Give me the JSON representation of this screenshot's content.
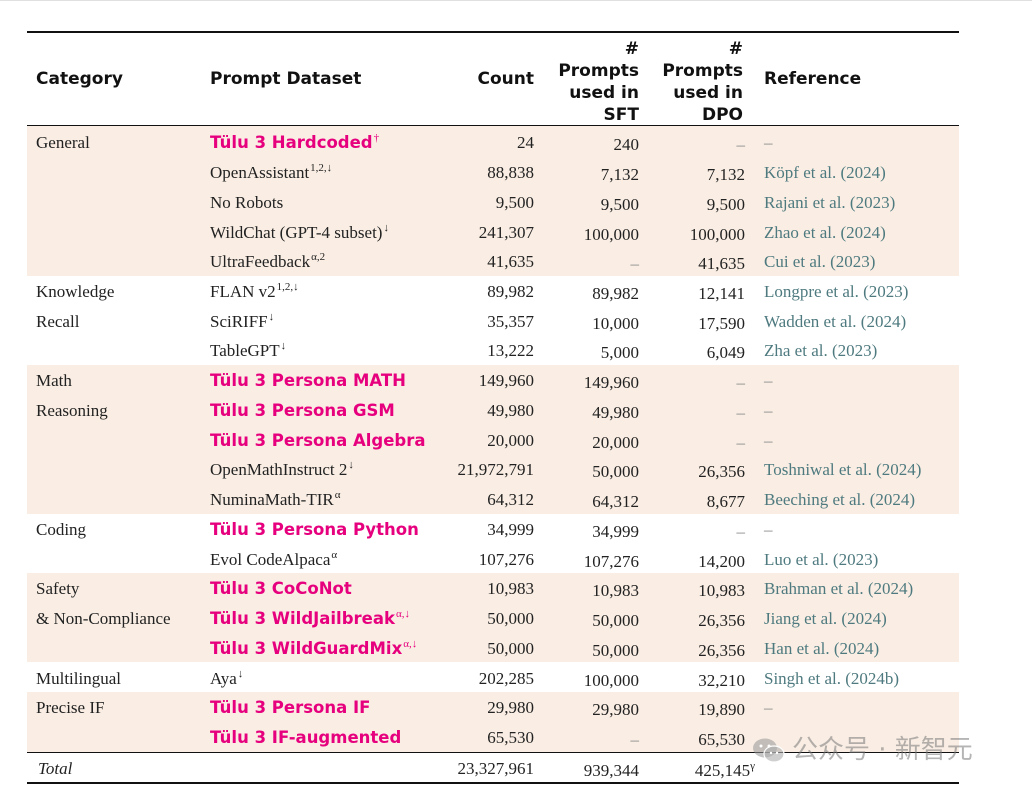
{
  "headers": {
    "category": "Category",
    "prompt_dataset": "Prompt Dataset",
    "count": "Count",
    "sft": [
      "#",
      "Prompts",
      "used in",
      "SFT"
    ],
    "dpo": [
      "#",
      "Prompts",
      "used in",
      "DPO"
    ],
    "reference": "Reference"
  },
  "rows": [
    {
      "category": "General",
      "dataset": "Tülu 3 Hardcoded",
      "sup": "†",
      "highlight": true,
      "count": "24",
      "sft": "240",
      "dpo": "–",
      "ref": "–"
    },
    {
      "category": "",
      "dataset": "OpenAssistant",
      "sup": "1,2,↓",
      "highlight": false,
      "count": "88,838",
      "sft": "7,132",
      "dpo": "7,132",
      "ref": "Köpf et al. (2024)"
    },
    {
      "category": "",
      "dataset": "No Robots",
      "sup": "",
      "highlight": false,
      "count": "9,500",
      "sft": "9,500",
      "dpo": "9,500",
      "ref": "Rajani et al. (2023)"
    },
    {
      "category": "",
      "dataset": "WildChat (GPT-4 subset)",
      "sup": "↓",
      "highlight": false,
      "count": "241,307",
      "sft": "100,000",
      "dpo": "100,000",
      "ref": "Zhao et al. (2024)"
    },
    {
      "category": "",
      "dataset": "UltraFeedback",
      "sup": "α,2",
      "highlight": false,
      "count": "41,635",
      "sft": "–",
      "dpo": "41,635",
      "ref": "Cui et al. (2023)"
    },
    {
      "category": "Knowledge",
      "dataset": "FLAN v2",
      "sup": "1,2,↓",
      "highlight": false,
      "count": "89,982",
      "sft": "89,982",
      "dpo": "12,141",
      "ref": "Longpre et al. (2023)"
    },
    {
      "category": "Recall",
      "dataset": "SciRIFF",
      "sup": "↓",
      "highlight": false,
      "count": "35,357",
      "sft": "10,000",
      "dpo": "17,590",
      "ref": "Wadden et al. (2024)"
    },
    {
      "category": "",
      "dataset": "TableGPT",
      "sup": "↓",
      "highlight": false,
      "count": "13,222",
      "sft": "5,000",
      "dpo": "6,049",
      "ref": "Zha et al. (2023)"
    },
    {
      "category": "Math",
      "dataset": "Tülu 3 Persona MATH",
      "sup": "",
      "highlight": true,
      "count": "149,960",
      "sft": "149,960",
      "dpo": "–",
      "ref": "–"
    },
    {
      "category": "Reasoning",
      "dataset": "Tülu 3 Persona GSM",
      "sup": "",
      "highlight": true,
      "count": "49,980",
      "sft": "49,980",
      "dpo": "–",
      "ref": "–"
    },
    {
      "category": "",
      "dataset": "Tülu 3 Persona Algebra",
      "sup": "",
      "highlight": true,
      "count": "20,000",
      "sft": "20,000",
      "dpo": "–",
      "ref": "–"
    },
    {
      "category": "",
      "dataset": "OpenMathInstruct 2",
      "sup": "↓",
      "highlight": false,
      "count": "21,972,791",
      "sft": "50,000",
      "dpo": "26,356",
      "ref": "Toshniwal et al. (2024)"
    },
    {
      "category": "",
      "dataset": "NuminaMath-TIR",
      "sup": "α",
      "highlight": false,
      "count": "64,312",
      "sft": "64,312",
      "dpo": "8,677",
      "ref": "Beeching et al. (2024)"
    },
    {
      "category": "Coding",
      "dataset": "Tülu 3 Persona Python",
      "sup": "",
      "highlight": true,
      "count": "34,999",
      "sft": "34,999",
      "dpo": "–",
      "ref": "–"
    },
    {
      "category": "",
      "dataset": "Evol CodeAlpaca",
      "sup": "α",
      "highlight": false,
      "count": "107,276",
      "sft": "107,276",
      "dpo": "14,200",
      "ref": "Luo et al. (2023)"
    },
    {
      "category": "Safety",
      "dataset": "Tülu 3 CoCoNot",
      "sup": "",
      "highlight": true,
      "count": "10,983",
      "sft": "10,983",
      "dpo": "10,983",
      "ref": "Brahman et al. (2024)"
    },
    {
      "category": "& Non-Compliance",
      "dataset": "Tülu 3 WildJailbreak",
      "sup": "α,↓",
      "highlight": true,
      "count": "50,000",
      "sft": "50,000",
      "dpo": "26,356",
      "ref": "Jiang et al. (2024)"
    },
    {
      "category": "",
      "dataset": "Tülu 3 WildGuardMix",
      "sup": "α,↓",
      "highlight": true,
      "count": "50,000",
      "sft": "50,000",
      "dpo": "26,356",
      "ref": "Han et al. (2024)"
    },
    {
      "category": "Multilingual",
      "dataset": "Aya",
      "sup": "↓",
      "highlight": false,
      "count": "202,285",
      "sft": "100,000",
      "dpo": "32,210",
      "ref": "Singh et al. (2024b)"
    },
    {
      "category": "Precise IF",
      "dataset": "Tülu 3 Persona IF",
      "sup": "",
      "highlight": true,
      "count": "29,980",
      "sft": "29,980",
      "dpo": "19,890",
      "ref": "–"
    },
    {
      "category": "",
      "dataset": "Tülu 3 IF-augmented",
      "sup": "",
      "highlight": true,
      "count": "65,530",
      "sft": "–",
      "dpo": "65,530",
      "ref": ""
    }
  ],
  "total": {
    "label": "Total",
    "count": "23,327,961",
    "sft": "939,344",
    "dpo": "425,145",
    "dpo_sup": "γ"
  },
  "watermark": {
    "text": "公众号 · 新智元",
    "icon": "wechat-icon"
  },
  "colors": {
    "highlight": "#e6007e",
    "band": "#faeee4",
    "reference": "#4e7a7f"
  }
}
